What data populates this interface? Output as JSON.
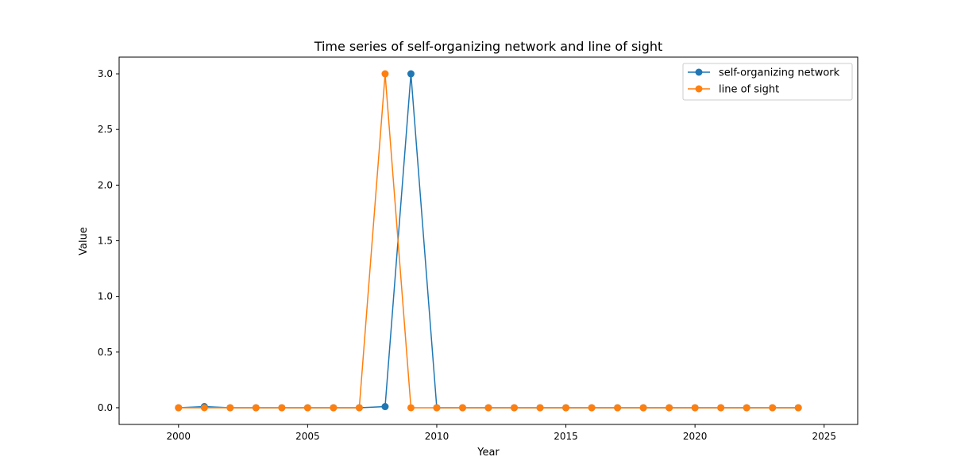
{
  "chart_data": {
    "type": "line",
    "title": "Time series of self-organizing network and line of sight",
    "xlabel": "Year",
    "ylabel": "Value",
    "xlim": [
      1997.7,
      2026.3
    ],
    "ylim": [
      -0.15,
      3.15
    ],
    "xticks": [
      2000,
      2005,
      2010,
      2015,
      2020,
      2025
    ],
    "yticks": [
      0.0,
      0.5,
      1.0,
      1.5,
      2.0,
      2.5,
      3.0
    ],
    "xtick_labels": [
      "2000",
      "2005",
      "2010",
      "2015",
      "2020",
      "2025"
    ],
    "ytick_labels": [
      "0.0",
      "0.5",
      "1.0",
      "1.5",
      "2.0",
      "2.5",
      "3.0"
    ],
    "grid": false,
    "legend_position": "top-right",
    "x": [
      2000,
      2001,
      2002,
      2003,
      2004,
      2005,
      2006,
      2007,
      2008,
      2009,
      2010,
      2011,
      2012,
      2013,
      2014,
      2015,
      2016,
      2017,
      2018,
      2019,
      2020,
      2021,
      2022,
      2023,
      2024
    ],
    "series": [
      {
        "name": "self-organizing network",
        "color": "#1f77b4",
        "values": [
          0.0,
          0.01,
          0.0,
          0.0,
          0.0,
          0.0,
          0.0,
          0.0,
          0.01,
          3.0,
          0.0,
          0.0,
          0.0,
          0.0,
          0.0,
          0.0,
          0.0,
          0.0,
          0.0,
          0.0,
          0.0,
          0.0,
          0.0,
          0.0,
          0.0
        ]
      },
      {
        "name": "line of sight",
        "color": "#ff7f0e",
        "values": [
          0.0,
          0.0,
          0.0,
          0.0,
          0.0,
          0.0,
          0.0,
          0.0,
          3.0,
          0.0,
          0.0,
          0.0,
          0.0,
          0.0,
          0.0,
          0.0,
          0.0,
          0.0,
          0.0,
          0.0,
          0.0,
          0.0,
          0.0,
          0.0,
          0.0
        ]
      }
    ]
  }
}
